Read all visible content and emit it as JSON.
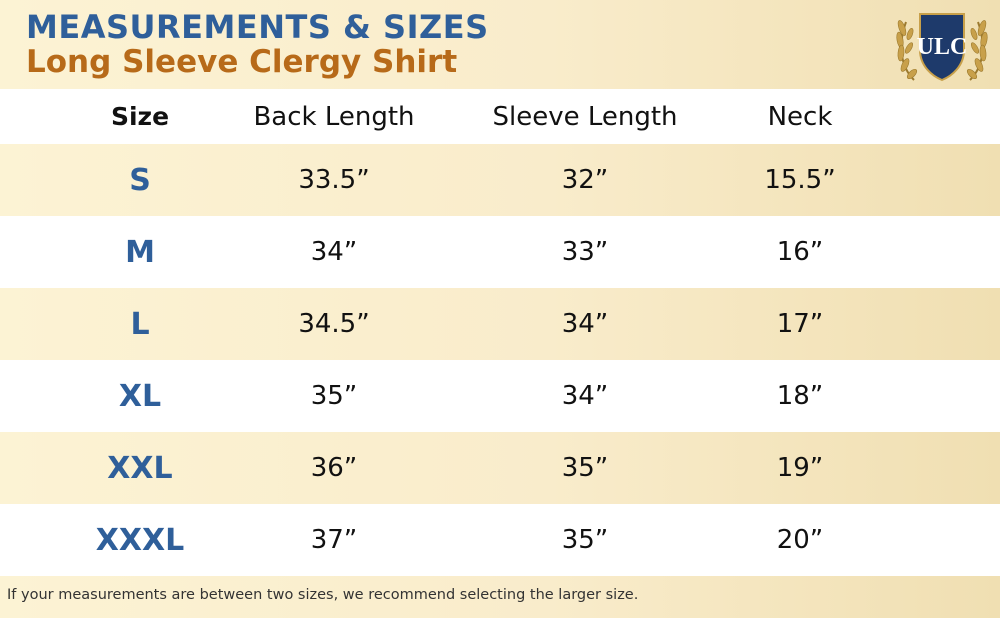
{
  "header": {
    "title": "MEASUREMENTS & SIZES",
    "subtitle": "Long Sleeve Clergy Shirt",
    "logo_text": "ULC"
  },
  "table": {
    "columns": [
      "Size",
      "Back Length",
      "Sleeve Length",
      "Neck"
    ],
    "rows": [
      {
        "size": "S",
        "back": "33.5”",
        "sleeve": "32”",
        "neck": "15.5”"
      },
      {
        "size": "M",
        "back": "34”",
        "sleeve": "33”",
        "neck": "16”"
      },
      {
        "size": "L",
        "back": "34.5”",
        "sleeve": "34”",
        "neck": "17”"
      },
      {
        "size": "XL",
        "back": "35”",
        "sleeve": "34”",
        "neck": "18”"
      },
      {
        "size": "XXL",
        "back": "36”",
        "sleeve": "35”",
        "neck": "19”"
      },
      {
        "size": "XXXL",
        "back": "37”",
        "sleeve": "35”",
        "neck": "20”"
      }
    ]
  },
  "footer": {
    "note": "If your measurements are between two sizes, we recommend selecting the larger size."
  },
  "colors": {
    "blue": "#2f5f9a",
    "orange": "#b76a19",
    "cream": "#f9eccb"
  }
}
